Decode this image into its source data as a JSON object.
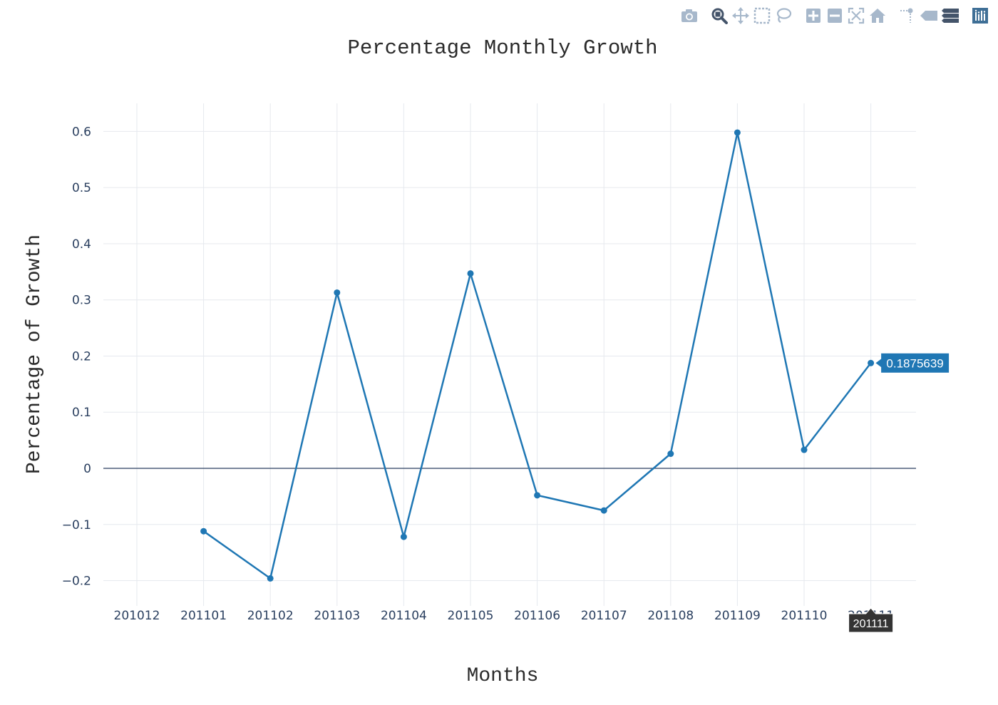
{
  "toolbar": {
    "buttons": [
      {
        "icon": "camera-icon",
        "label": ""
      },
      {
        "icon": "zoom-icon",
        "label": ""
      },
      {
        "icon": "pan-icon",
        "label": ""
      },
      {
        "icon": "box-select-icon",
        "label": ""
      },
      {
        "icon": "lasso-select-icon",
        "label": ""
      },
      {
        "icon": "zoom-in-icon",
        "label": ""
      },
      {
        "icon": "zoom-out-icon",
        "label": ""
      },
      {
        "icon": "autoscale-icon",
        "label": ""
      },
      {
        "icon": "reset-axes-icon",
        "label": ""
      },
      {
        "icon": "spike-lines-icon",
        "label": ""
      },
      {
        "icon": "hover-closest-icon",
        "label": ""
      },
      {
        "icon": "hover-compare-icon",
        "label": ""
      },
      {
        "icon": "plotly-logo-icon",
        "label": ""
      }
    ]
  },
  "chart_data": {
    "type": "line",
    "title": "Percentage Monthly Growth",
    "xlabel": "Months",
    "ylabel": "Percentage of Growth",
    "categories": [
      "201012",
      "201101",
      "201102",
      "201103",
      "201104",
      "201105",
      "201106",
      "201107",
      "201108",
      "201109",
      "201110",
      "201111"
    ],
    "series": [
      {
        "color": "#1f77b4",
        "values": [
          null,
          -0.112,
          -0.196,
          0.313,
          -0.122,
          0.347,
          -0.048,
          -0.075,
          0.026,
          0.598,
          0.033,
          0.1875639
        ]
      }
    ],
    "ylim": [
      -0.245,
      0.65
    ],
    "yticks": [
      -0.2,
      -0.1,
      0,
      0.1,
      0.2,
      0.3,
      0.4,
      0.5,
      0.6
    ],
    "ytick_labels": [
      "−0.2",
      "−0.1",
      "0",
      "0.1",
      "0.2",
      "0.3",
      "0.4",
      "0.5",
      "0.6"
    ],
    "grid": true,
    "hover": {
      "category": "201111",
      "value_label": "0.1875639",
      "x_label": "201111"
    }
  }
}
